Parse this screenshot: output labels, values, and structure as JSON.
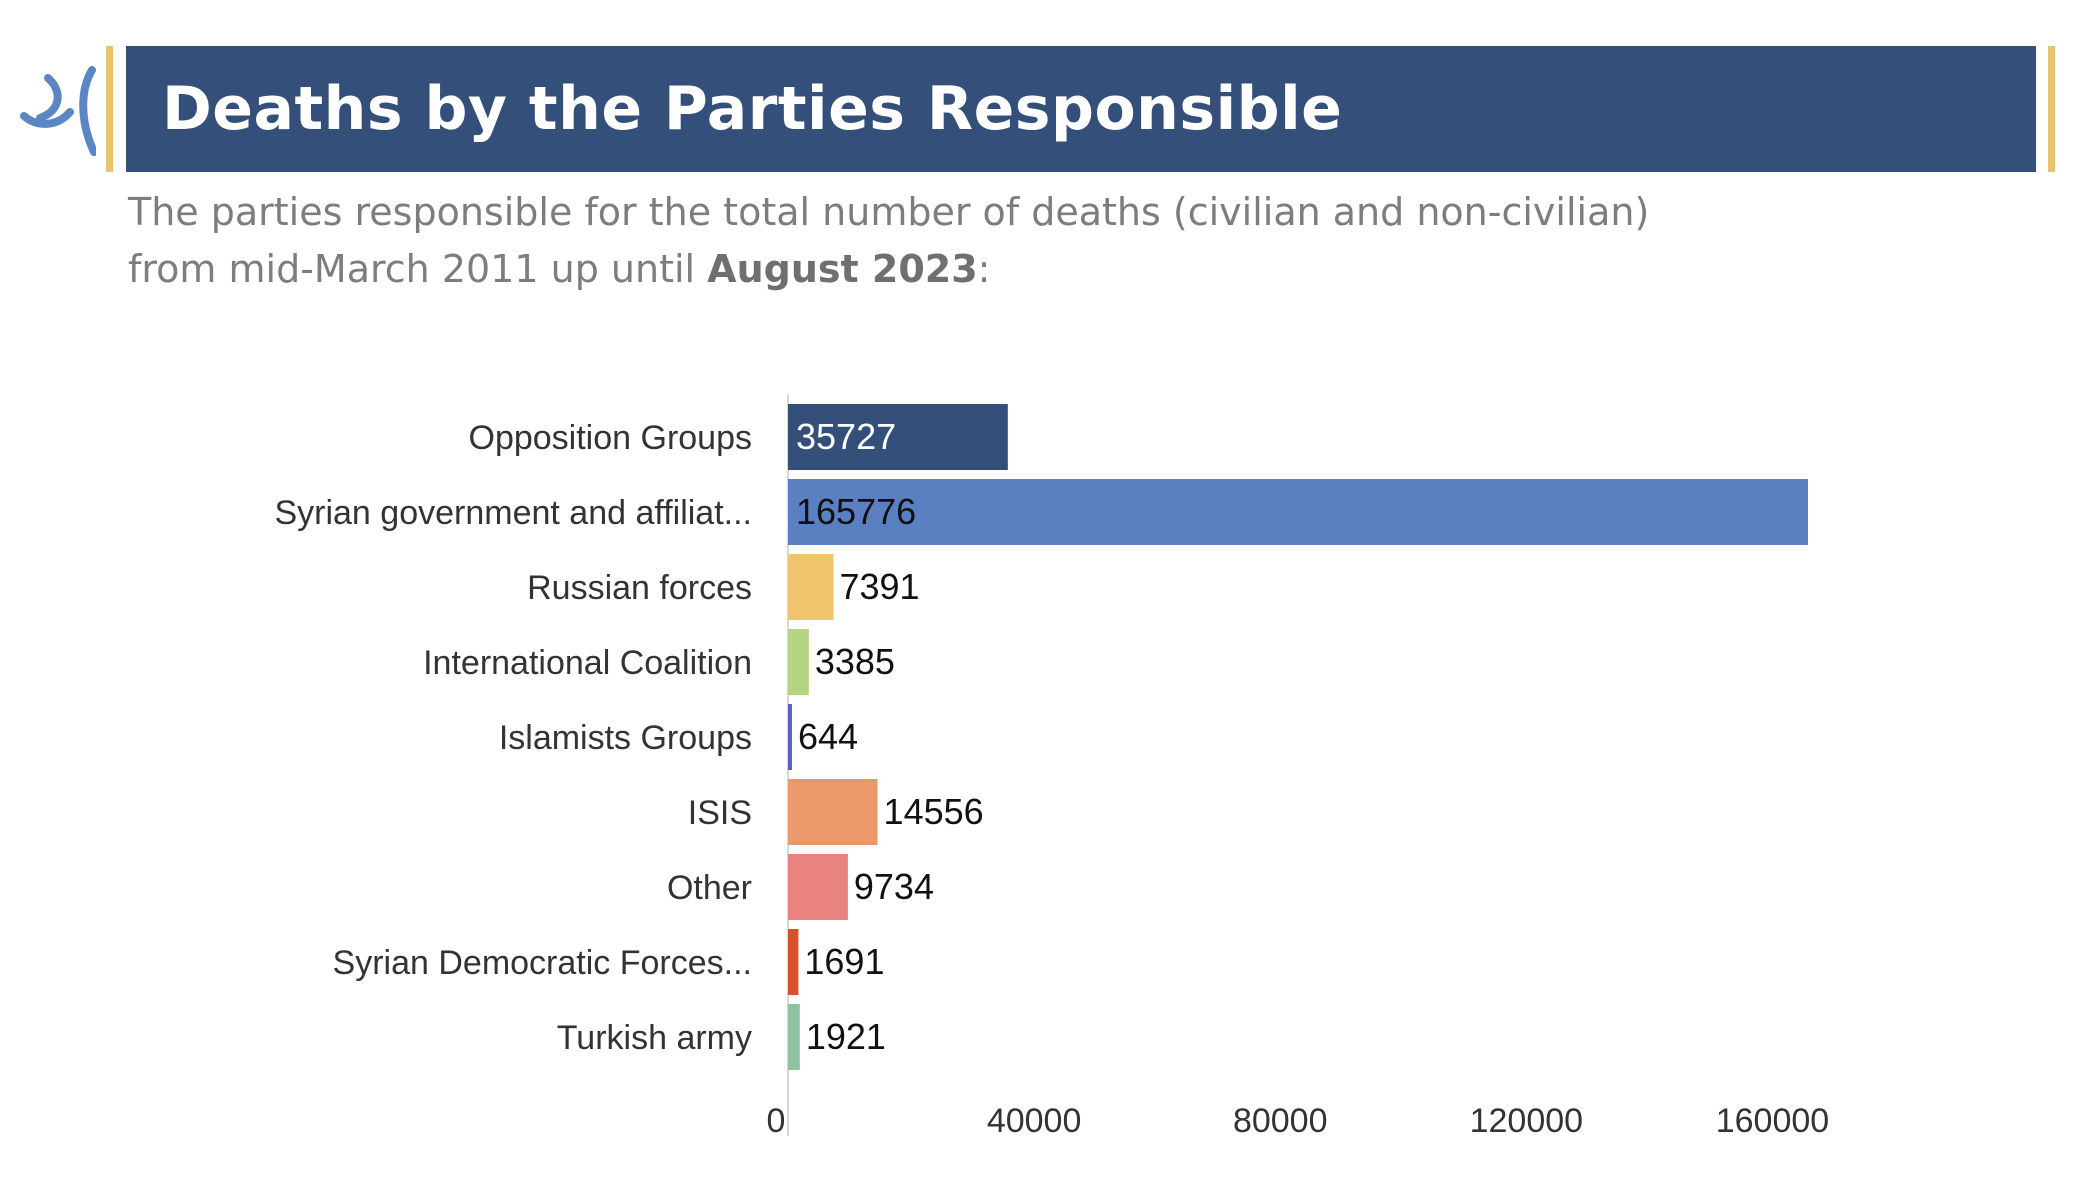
{
  "header": {
    "title": "Deaths by the Parties Responsible"
  },
  "subtitle": {
    "line1": "The parties responsible for the total number of deaths (civilian and non-civilian)",
    "line2_prefix": "from mid-March 2011 up until ",
    "line2_bold": "August 2023",
    "line2_suffix": ":"
  },
  "colors": {
    "banner": "#344f79",
    "accent_gold": "#e8c26c",
    "logo_blue": "#5a86c4"
  },
  "chart_data": {
    "type": "bar",
    "orientation": "horizontal",
    "categories": [
      "Opposition Groups",
      "Syrian government and affiliat...",
      "Russian forces",
      "International Coalition",
      "Islamists Groups",
      "ISIS",
      "Other",
      "Syrian Democratic Forces...",
      "Turkish army"
    ],
    "values": [
      35727,
      165776,
      7391,
      3385,
      644,
      14556,
      9734,
      1691,
      1921
    ],
    "value_labels": [
      "35727",
      "165776",
      "7391",
      "3385",
      "644",
      "14556",
      "9734",
      "1691",
      "1921"
    ],
    "colors": [
      "#344f79",
      "#5b80c2",
      "#efc46c",
      "#b5d484",
      "#5a5fc4",
      "#e9996a",
      "#e8837e",
      "#d9502f",
      "#8fc39f"
    ],
    "label_colors": [
      "#ffffff",
      "#111111",
      "#111111",
      "#111111",
      "#111111",
      "#111111",
      "#111111",
      "#111111",
      "#111111"
    ],
    "xlim": [
      0,
      200000
    ],
    "xticks": [
      0,
      40000,
      80000,
      120000,
      160000
    ],
    "xtick_labels": [
      "0",
      "40000",
      "80000",
      "120000",
      "160000"
    ],
    "grid": false,
    "legend": "none"
  }
}
